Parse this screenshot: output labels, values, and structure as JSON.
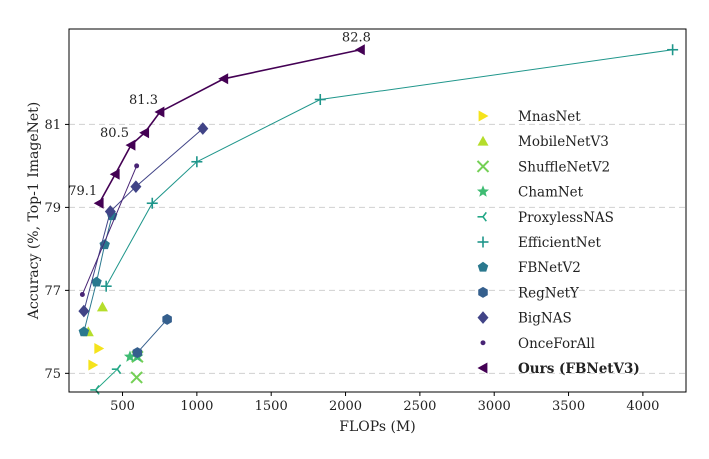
{
  "chart_data": {
    "type": "scatter",
    "xlabel": "FLOPs (M)",
    "ylabel": "Accuracy (%, Top-1 ImageNet)",
    "xlim": [
      140,
      4290
    ],
    "ylim": [
      74.55,
      83.3
    ],
    "xticks": [
      500,
      1000,
      1500,
      2000,
      2500,
      3000,
      3500,
      4000
    ],
    "yticks": [
      75,
      77,
      79,
      81
    ],
    "xtick_labels": [
      "500",
      "1000",
      "1500",
      "2000",
      "2500",
      "3000",
      "3500",
      "4000"
    ],
    "ytick_labels": [
      "75",
      "77",
      "79",
      "81"
    ],
    "grid": "horizontal dashed at y ticks",
    "legend_position": "right",
    "series": [
      {
        "name": "MnasNet",
        "marker": "triangle-right",
        "color": "#f5e31c",
        "line": false,
        "x": [
          300,
          340
        ],
        "y": [
          75.2,
          75.6
        ]
      },
      {
        "name": "MobileNetV3",
        "marker": "triangle-up",
        "color": "#b5dd2b",
        "line": false,
        "x": [
          270,
          365
        ],
        "y": [
          76.0,
          76.6
        ]
      },
      {
        "name": "ShuffleNetV2",
        "marker": "x",
        "color": "#74d055",
        "line": false,
        "x": [
          595,
          600
        ],
        "y": [
          74.9,
          75.4
        ]
      },
      {
        "name": "ChamNet",
        "marker": "star",
        "color": "#3fbc73",
        "line": false,
        "x": [
          550,
          600
        ],
        "y": [
          75.4,
          75.4
        ]
      },
      {
        "name": "ProxylessNAS",
        "marker": "tri-left",
        "color": "#21a685",
        "line": true,
        "x": [
          320,
          465
        ],
        "y": [
          74.6,
          75.1
        ]
      },
      {
        "name": "EfficientNet",
        "marker": "plus",
        "color": "#1f968b",
        "line": true,
        "x": [
          390,
          700,
          1000,
          1830,
          4200
        ],
        "y": [
          77.1,
          79.1,
          80.1,
          81.6,
          82.8
        ]
      },
      {
        "name": "FBNetV2",
        "marker": "pentagon",
        "color": "#2a788e",
        "line": true,
        "x": [
          240,
          325,
          380,
          430
        ],
        "y": [
          76.0,
          77.2,
          78.1,
          78.8
        ]
      },
      {
        "name": "RegNetY",
        "marker": "hexagon",
        "color": "#355f8d",
        "line": true,
        "x": [
          600,
          800
        ],
        "y": [
          75.5,
          76.3
        ]
      },
      {
        "name": "BigNAS",
        "marker": "diamond",
        "color": "#414487",
        "line": true,
        "x": [
          240,
          418,
          590,
          1040
        ],
        "y": [
          76.5,
          78.9,
          79.5,
          80.9
        ]
      },
      {
        "name": "OnceForAll",
        "marker": "dot",
        "color": "#482475",
        "line": true,
        "x": [
          230,
          595
        ],
        "y": [
          76.9,
          80.0
        ]
      },
      {
        "name": "Ours (FBNetV3)",
        "marker": "triangle-left",
        "color": "#440154",
        "line": true,
        "x": [
          343,
          451,
          557,
          649,
          752,
          1181,
          2100
        ],
        "y": [
          79.1,
          79.8,
          80.5,
          80.8,
          81.3,
          82.1,
          82.8
        ]
      }
    ],
    "annotations": [
      {
        "text": "82.8",
        "x": 2100,
        "y": 82.8,
        "anchor": "above"
      },
      {
        "text": "81.3",
        "x": 752,
        "y": 81.3,
        "anchor": "above-left"
      },
      {
        "text": "80.5",
        "x": 557,
        "y": 80.5,
        "anchor": "above-left"
      },
      {
        "text": "79.1",
        "x": 343,
        "y": 79.1,
        "anchor": "above-left"
      }
    ]
  }
}
